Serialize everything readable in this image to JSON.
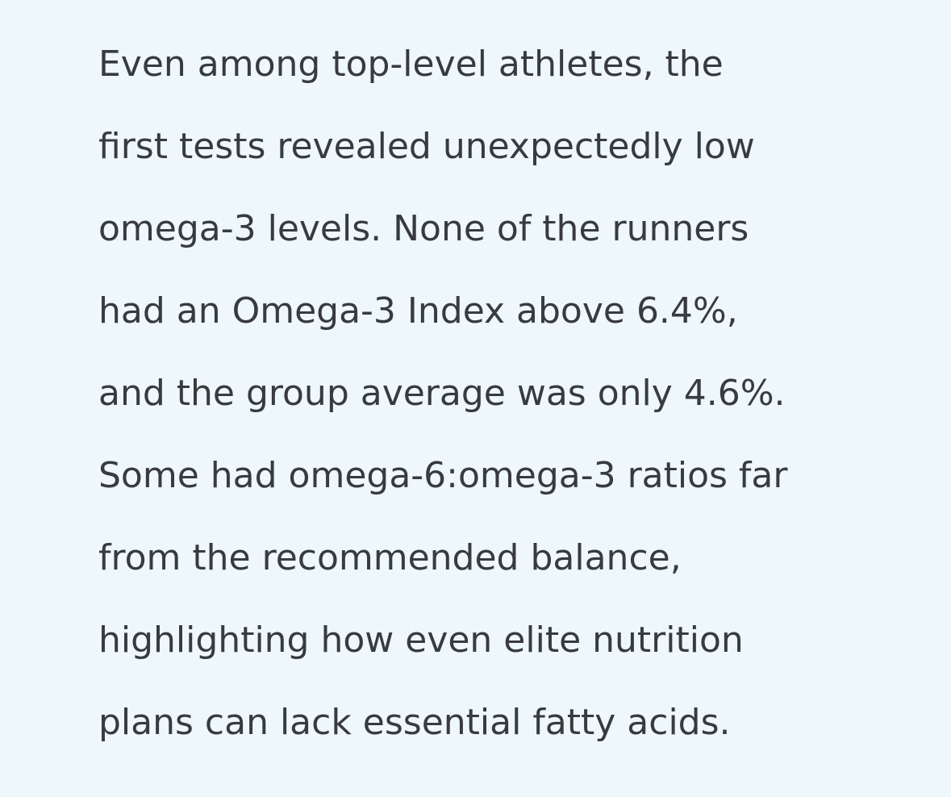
{
  "paragraph": {
    "lines": [
      "Even among top-level athletes, the",
      "first tests revealed unexpectedly low",
      "omega-3 levels. None of the runners",
      "had an Omega-3 Index above 6.4%,",
      "and the group average was only 4.6%.",
      "Some had omega-6:omega-3 ratios far",
      "from the recommended balance,",
      "highlighting how even elite nutrition",
      "plans can lack essential fatty acids."
    ]
  }
}
